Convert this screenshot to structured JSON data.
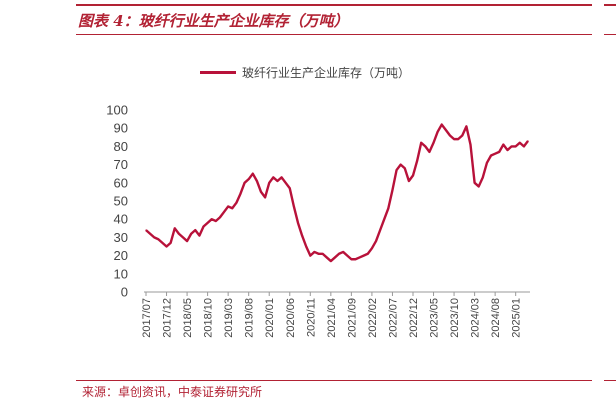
{
  "header": {
    "title": "图表 4：玻纤行业生产企业库存（万吨）"
  },
  "colors": {
    "accent": "#b22234",
    "series": "#b8123a"
  },
  "footer": {
    "source": "来源：卓创资讯，中泰证券研究所"
  },
  "chart_data": {
    "type": "line",
    "ylim": [
      0,
      100
    ],
    "y_ticks": [
      "0",
      "10",
      "20",
      "30",
      "40",
      "50",
      "60",
      "70",
      "80",
      "90",
      "100"
    ],
    "x_tick_labels": [
      "2017/07",
      "2017/12",
      "2018/05",
      "2018/10",
      "2019/03",
      "2019/08",
      "2020/01",
      "2020/06",
      "2020/11",
      "2021/04",
      "2021/09",
      "2022/02",
      "2022/07",
      "2022/12",
      "2023/05",
      "2023/10",
      "2024/03",
      "2024/08",
      "2025/01"
    ],
    "grid": false,
    "legend_position": "top-center",
    "series": [
      {
        "name": "玻纤行业生产企业库存（万吨）",
        "x": [
          "2017/07",
          "2017/08",
          "2017/09",
          "2017/10",
          "2017/11",
          "2017/12",
          "2018/01",
          "2018/02",
          "2018/03",
          "2018/04",
          "2018/05",
          "2018/06",
          "2018/07",
          "2018/08",
          "2018/09",
          "2018/10",
          "2018/11",
          "2018/12",
          "2019/01",
          "2019/02",
          "2019/03",
          "2019/04",
          "2019/05",
          "2019/06",
          "2019/07",
          "2019/08",
          "2019/09",
          "2019/10",
          "2019/11",
          "2019/12",
          "2020/01",
          "2020/02",
          "2020/03",
          "2020/04",
          "2020/05",
          "2020/06",
          "2020/07",
          "2020/08",
          "2020/09",
          "2020/10",
          "2020/11",
          "2020/12",
          "2021/01",
          "2021/02",
          "2021/03",
          "2021/04",
          "2021/05",
          "2021/06",
          "2021/07",
          "2021/08",
          "2021/09",
          "2021/10",
          "2021/11",
          "2021/12",
          "2022/01",
          "2022/02",
          "2022/03",
          "2022/04",
          "2022/05",
          "2022/06",
          "2022/07",
          "2022/08",
          "2022/09",
          "2022/10",
          "2022/11",
          "2022/12",
          "2023/01",
          "2023/02",
          "2023/03",
          "2023/04",
          "2023/05",
          "2023/06",
          "2023/07",
          "2023/08",
          "2023/09",
          "2023/10",
          "2023/11",
          "2023/12",
          "2024/01",
          "2024/02",
          "2024/03",
          "2024/04",
          "2024/05",
          "2024/06",
          "2024/07",
          "2024/08",
          "2024/09",
          "2024/10",
          "2024/11",
          "2024/12",
          "2025/01",
          "2025/02",
          "2025/03",
          "2025/04"
        ],
        "values": [
          34,
          32,
          30,
          29,
          27,
          25,
          27,
          35,
          32,
          30,
          28,
          32,
          34,
          31,
          36,
          38,
          40,
          39,
          41,
          44,
          47,
          46,
          49,
          54,
          60,
          62,
          65,
          61,
          55,
          52,
          60,
          63,
          61,
          63,
          60,
          57,
          47,
          38,
          31,
          25,
          20,
          22,
          21,
          21,
          19,
          17,
          19,
          21,
          22,
          20,
          18,
          18,
          19,
          20,
          21,
          24,
          28,
          34,
          40,
          46,
          56,
          67,
          70,
          68,
          61,
          64,
          72,
          82,
          80,
          77,
          82,
          88,
          92,
          89,
          86,
          84,
          84,
          86,
          91,
          81,
          60,
          58,
          63,
          71,
          75,
          76,
          77,
          81,
          78,
          80,
          80,
          82,
          80,
          83
        ]
      }
    ]
  }
}
